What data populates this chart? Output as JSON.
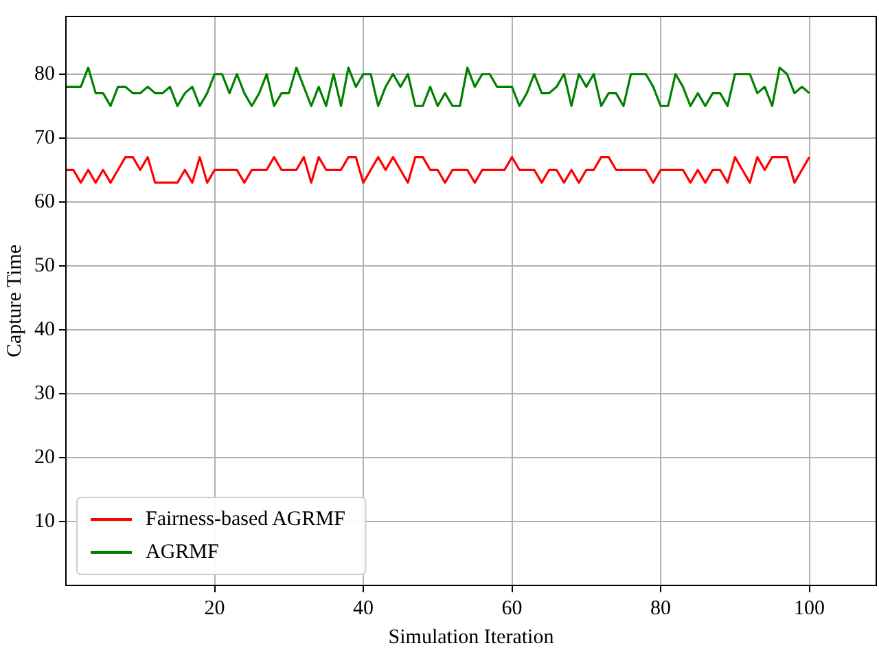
{
  "chart_data": {
    "type": "line",
    "xlabel": "Simulation Iteration",
    "ylabel": "Capture Time",
    "x": [
      0,
      1,
      2,
      3,
      4,
      5,
      6,
      7,
      8,
      9,
      10,
      11,
      12,
      13,
      14,
      15,
      16,
      17,
      18,
      19,
      20,
      21,
      22,
      23,
      24,
      25,
      26,
      27,
      28,
      29,
      30,
      31,
      32,
      33,
      34,
      35,
      36,
      37,
      38,
      39,
      40,
      41,
      42,
      43,
      44,
      45,
      46,
      47,
      48,
      49,
      50,
      51,
      52,
      53,
      54,
      55,
      56,
      57,
      58,
      59,
      60,
      61,
      62,
      63,
      64,
      65,
      66,
      67,
      68,
      69,
      70,
      71,
      72,
      73,
      74,
      75,
      76,
      77,
      78,
      79,
      80,
      81,
      82,
      83,
      84,
      85,
      86,
      87,
      88,
      89,
      90,
      91,
      92,
      93,
      94,
      95,
      96,
      97,
      98,
      99,
      100
    ],
    "series": [
      {
        "name": "Fairness-based AGRMF",
        "color": "#ff0000",
        "values": [
          65,
          65,
          63,
          65,
          63,
          65,
          63,
          65,
          67,
          67,
          65,
          67,
          63,
          63,
          63,
          63,
          65,
          63,
          67,
          63,
          65,
          65,
          65,
          65,
          63,
          65,
          65,
          65,
          67,
          65,
          65,
          65,
          67,
          63,
          67,
          65,
          65,
          65,
          67,
          67,
          63,
          65,
          67,
          65,
          67,
          65,
          63,
          67,
          67,
          65,
          65,
          63,
          65,
          65,
          65,
          63,
          65,
          65,
          65,
          65,
          67,
          65,
          65,
          65,
          63,
          65,
          65,
          63,
          65,
          63,
          65,
          65,
          67,
          67,
          65,
          65,
          65,
          65,
          65,
          63,
          65,
          65,
          65,
          65,
          63,
          65,
          63,
          65,
          65,
          63,
          67,
          65,
          63,
          67,
          65,
          67,
          67,
          67,
          63,
          65,
          67
        ]
      },
      {
        "name": "AGRMF",
        "color": "#008000",
        "values": [
          78,
          78,
          78,
          81,
          77,
          77,
          75,
          78,
          78,
          77,
          77,
          78,
          77,
          77,
          78,
          75,
          77,
          78,
          75,
          77,
          80,
          80,
          77,
          80,
          77,
          75,
          77,
          80,
          75,
          77,
          77,
          81,
          78,
          75,
          78,
          75,
          80,
          75,
          81,
          78,
          80,
          80,
          75,
          78,
          80,
          78,
          80,
          75,
          75,
          78,
          75,
          77,
          75,
          75,
          81,
          78,
          80,
          80,
          78,
          78,
          78,
          75,
          77,
          80,
          77,
          77,
          78,
          80,
          75,
          80,
          78,
          80,
          75,
          77,
          77,
          75,
          80,
          80,
          80,
          78,
          75,
          75,
          80,
          78,
          75,
          77,
          75,
          77,
          77,
          75,
          80,
          80,
          80,
          77,
          78,
          75,
          81,
          80,
          77,
          78,
          77
        ]
      }
    ],
    "xlim": [
      0,
      109
    ],
    "xticks": [
      20,
      40,
      60,
      80,
      100
    ],
    "ylim": [
      0,
      89
    ],
    "yticks": [
      10,
      20,
      30,
      40,
      50,
      60,
      70,
      80
    ],
    "grid": true,
    "legend": "bottom left",
    "marker": "none",
    "line_style": "solid"
  }
}
